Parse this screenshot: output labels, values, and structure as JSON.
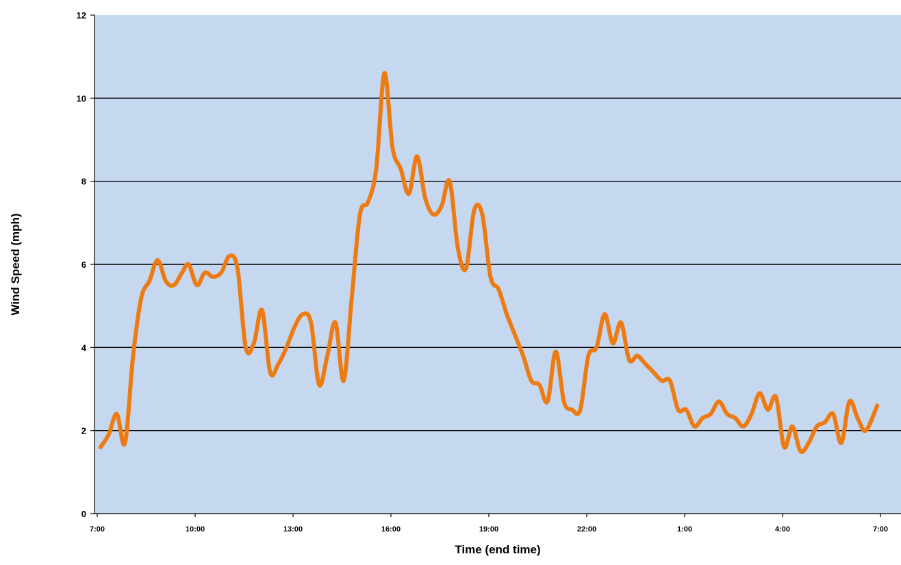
{
  "chart_data": {
    "type": "line",
    "title": "",
    "xlabel": "Time (end time)",
    "ylabel": "Wind Speed (mph)",
    "ylim": [
      0,
      12
    ],
    "yticks": [
      0,
      2,
      4,
      6,
      8,
      10,
      12
    ],
    "xticks": [
      "7:00",
      "10:00",
      "13:00",
      "16:00",
      "19:00",
      "22:00",
      "1:00",
      "4:00",
      "7:00"
    ],
    "x_unit": "hours since 7:00",
    "x_range": [
      0,
      24
    ],
    "grid": "horizontal",
    "colors": {
      "plot_background": "#c6d8ef",
      "line": "#ed7b13",
      "grid": "#000000"
    },
    "series": [
      {
        "name": "",
        "points": [
          [
            0.1,
            1.6
          ],
          [
            0.35,
            1.9
          ],
          [
            0.6,
            2.4
          ],
          [
            0.85,
            1.7
          ],
          [
            1.1,
            3.8
          ],
          [
            1.35,
            5.2
          ],
          [
            1.6,
            5.6
          ],
          [
            1.85,
            6.1
          ],
          [
            2.1,
            5.6
          ],
          [
            2.35,
            5.5
          ],
          [
            2.6,
            5.8
          ],
          [
            2.8,
            6.0
          ],
          [
            3.05,
            5.5
          ],
          [
            3.3,
            5.8
          ],
          [
            3.55,
            5.7
          ],
          [
            3.8,
            5.8
          ],
          [
            4.05,
            6.2
          ],
          [
            4.3,
            5.9
          ],
          [
            4.55,
            4.0
          ],
          [
            4.8,
            4.1
          ],
          [
            5.05,
            4.9
          ],
          [
            5.3,
            3.4
          ],
          [
            5.55,
            3.6
          ],
          [
            5.8,
            4.0
          ],
          [
            6.05,
            4.5
          ],
          [
            6.3,
            4.8
          ],
          [
            6.55,
            4.6
          ],
          [
            6.8,
            3.1
          ],
          [
            7.05,
            3.8
          ],
          [
            7.3,
            4.6
          ],
          [
            7.55,
            3.2
          ],
          [
            7.8,
            5.2
          ],
          [
            8.05,
            7.2
          ],
          [
            8.3,
            7.5
          ],
          [
            8.55,
            8.3
          ],
          [
            8.8,
            10.6
          ],
          [
            9.05,
            8.8
          ],
          [
            9.3,
            8.3
          ],
          [
            9.55,
            7.7
          ],
          [
            9.8,
            8.6
          ],
          [
            10.05,
            7.6
          ],
          [
            10.3,
            7.2
          ],
          [
            10.55,
            7.4
          ],
          [
            10.8,
            8.0
          ],
          [
            11.05,
            6.4
          ],
          [
            11.3,
            5.9
          ],
          [
            11.55,
            7.3
          ],
          [
            11.8,
            7.2
          ],
          [
            12.05,
            5.7
          ],
          [
            12.3,
            5.4
          ],
          [
            12.55,
            4.8
          ],
          [
            12.8,
            4.3
          ],
          [
            13.05,
            3.8
          ],
          [
            13.3,
            3.2
          ],
          [
            13.55,
            3.1
          ],
          [
            13.8,
            2.7
          ],
          [
            14.05,
            3.9
          ],
          [
            14.3,
            2.7
          ],
          [
            14.55,
            2.5
          ],
          [
            14.8,
            2.5
          ],
          [
            15.05,
            3.8
          ],
          [
            15.3,
            4.0
          ],
          [
            15.55,
            4.8
          ],
          [
            15.8,
            4.1
          ],
          [
            16.05,
            4.6
          ],
          [
            16.3,
            3.7
          ],
          [
            16.55,
            3.8
          ],
          [
            16.8,
            3.6
          ],
          [
            17.05,
            3.4
          ],
          [
            17.3,
            3.2
          ],
          [
            17.55,
            3.2
          ],
          [
            17.8,
            2.5
          ],
          [
            18.05,
            2.5
          ],
          [
            18.3,
            2.1
          ],
          [
            18.55,
            2.3
          ],
          [
            18.8,
            2.4
          ],
          [
            19.05,
            2.7
          ],
          [
            19.3,
            2.4
          ],
          [
            19.55,
            2.3
          ],
          [
            19.8,
            2.1
          ],
          [
            20.05,
            2.4
          ],
          [
            20.3,
            2.9
          ],
          [
            20.55,
            2.5
          ],
          [
            20.8,
            2.8
          ],
          [
            21.05,
            1.6
          ],
          [
            21.3,
            2.1
          ],
          [
            21.55,
            1.5
          ],
          [
            21.8,
            1.7
          ],
          [
            22.05,
            2.1
          ],
          [
            22.3,
            2.2
          ],
          [
            22.55,
            2.4
          ],
          [
            22.8,
            1.7
          ],
          [
            23.05,
            2.7
          ],
          [
            23.3,
            2.3
          ],
          [
            23.55,
            2.0
          ],
          [
            23.9,
            2.6
          ]
        ]
      }
    ]
  }
}
